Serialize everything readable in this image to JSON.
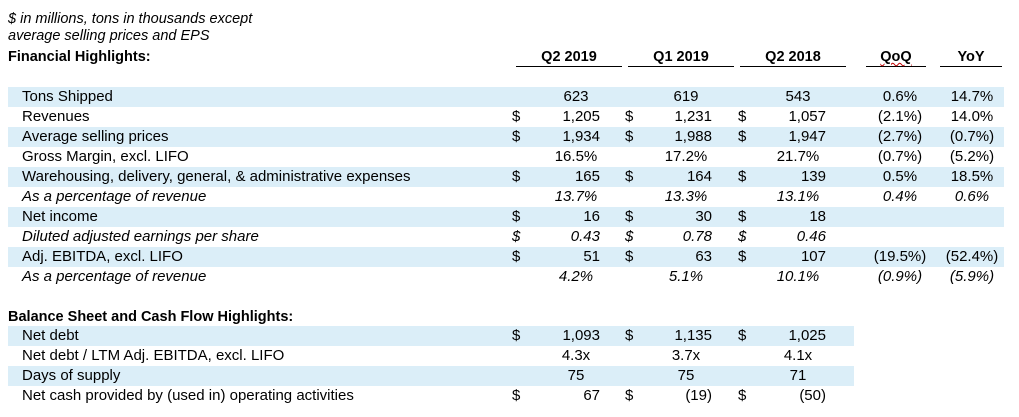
{
  "note": {
    "line1": "$ in millions, tons in thousands except",
    "line2": "average selling prices and EPS"
  },
  "financial": {
    "title": "Financial Highlights:",
    "headers": [
      "Q2 2019",
      "Q1 2019",
      "Q2 2018",
      "QoQ",
      "YoY"
    ],
    "rows": [
      {
        "label": "Tons Shipped",
        "italic": false,
        "band": true,
        "cur": [
          "",
          "",
          ""
        ],
        "vals": [
          "623",
          "619",
          "543"
        ],
        "center": true,
        "qoq": "0.6%",
        "yoy": "14.7%"
      },
      {
        "label": "Revenues",
        "italic": false,
        "band": false,
        "cur": [
          "$",
          "$",
          "$"
        ],
        "vals": [
          "1,205",
          "1,231",
          "1,057"
        ],
        "center": false,
        "qoq": "(2.1%)",
        "yoy": "14.0%"
      },
      {
        "label": "Average selling prices",
        "italic": false,
        "band": true,
        "cur": [
          "$",
          "$",
          "$"
        ],
        "vals": [
          "1,934",
          "1,988",
          "1,947"
        ],
        "center": false,
        "qoq": "(2.7%)",
        "yoy": "(0.7%)"
      },
      {
        "label": "Gross Margin, excl. LIFO",
        "italic": false,
        "band": false,
        "cur": [
          "",
          "",
          ""
        ],
        "vals": [
          "16.5%",
          "17.2%",
          "21.7%"
        ],
        "center": true,
        "qoq": "(0.7%)",
        "yoy": "(5.2%)"
      },
      {
        "label": "Warehousing, delivery, general, & administrative expenses",
        "italic": false,
        "band": true,
        "cur": [
          "$",
          "$",
          "$"
        ],
        "vals": [
          "165",
          "164",
          "139"
        ],
        "center": false,
        "qoq": "0.5%",
        "yoy": "18.5%"
      },
      {
        "label": "As a percentage of revenue",
        "italic": true,
        "band": false,
        "cur": [
          "",
          "",
          ""
        ],
        "vals": [
          "13.7%",
          "13.3%",
          "13.1%"
        ],
        "center": true,
        "qoq": "0.4%",
        "yoy": "0.6%"
      },
      {
        "label": "Net income",
        "italic": false,
        "band": true,
        "cur": [
          "$",
          "$",
          "$"
        ],
        "vals": [
          "16",
          "30",
          "18"
        ],
        "center": false,
        "qoq": "",
        "yoy": ""
      },
      {
        "label": "Diluted adjusted earnings per share",
        "italic": true,
        "band": false,
        "cur": [
          "$",
          "$",
          "$"
        ],
        "vals": [
          "0.43",
          "0.78",
          "0.46"
        ],
        "center": false,
        "qoq": "",
        "yoy": ""
      },
      {
        "label": "Adj. EBITDA, excl. LIFO",
        "italic": false,
        "band": true,
        "cur": [
          "$",
          "$",
          "$"
        ],
        "vals": [
          "51",
          "63",
          "107"
        ],
        "center": false,
        "qoq": "(19.5%)",
        "yoy": "(52.4%)"
      },
      {
        "label": "As a percentage of revenue",
        "italic": true,
        "band": false,
        "cur": [
          "",
          "",
          ""
        ],
        "vals": [
          "4.2%",
          "5.1%",
          "10.1%"
        ],
        "center": true,
        "qoq": "(0.9%)",
        "yoy": "(5.9%)"
      }
    ]
  },
  "balance": {
    "title": "Balance Sheet and Cash Flow Highlights:",
    "rows": [
      {
        "label": "Net debt",
        "italic": false,
        "band": true,
        "cur": [
          "$",
          "$",
          "$"
        ],
        "vals": [
          "1,093",
          "1,135",
          "1,025"
        ],
        "center": false
      },
      {
        "label": "Net debt / LTM Adj. EBITDA, excl. LIFO",
        "italic": false,
        "band": false,
        "cur": [
          "",
          "",
          ""
        ],
        "vals": [
          "4.3x",
          "3.7x",
          "4.1x"
        ],
        "center": true
      },
      {
        "label": "Days of supply",
        "italic": false,
        "band": true,
        "cur": [
          "",
          "",
          ""
        ],
        "vals": [
          "75",
          "75",
          "71"
        ],
        "center": true
      },
      {
        "label": "Net cash provided by (used in) operating activities",
        "italic": false,
        "band": false,
        "cur": [
          "$",
          "$",
          "$"
        ],
        "vals": [
          "67",
          "(19)",
          "(50)"
        ],
        "center": false
      }
    ]
  },
  "colors": {
    "band": "#dbeef8",
    "spellcheck": "#c00000"
  }
}
